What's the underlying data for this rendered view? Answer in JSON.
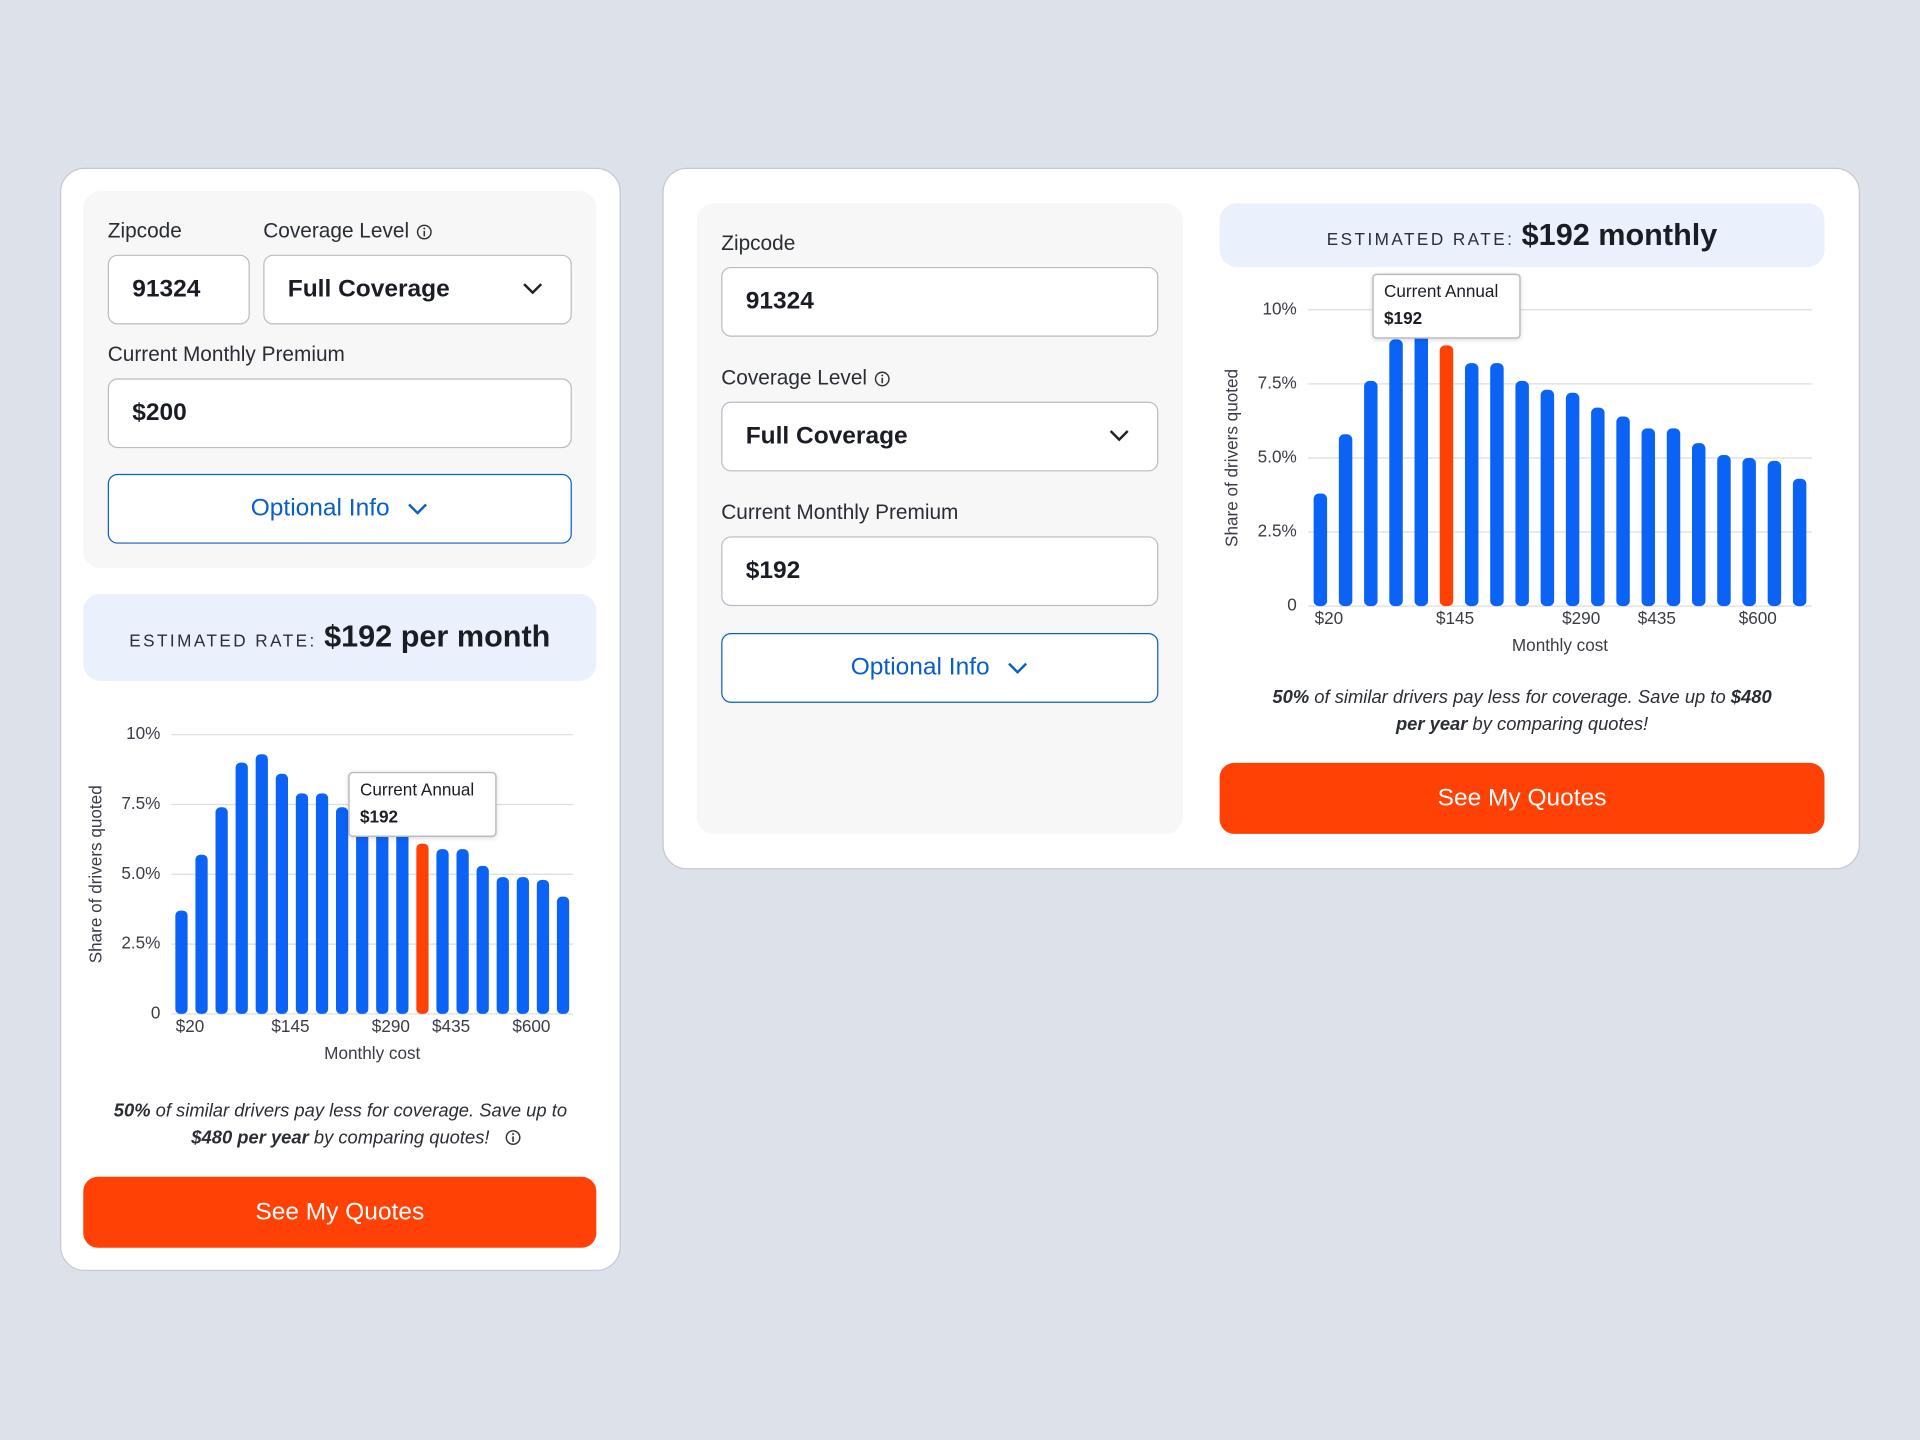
{
  "left_card": {
    "form": {
      "zipcode_label": "Zipcode",
      "zipcode": "91324",
      "coverage_label": "Coverage Level",
      "coverage": "Full Coverage",
      "premium_label": "Current Monthly Premium",
      "premium": "$200",
      "optional_button": "Optional Info"
    },
    "estimate": {
      "label": "ESTIMATED RATE:",
      "value": "$192 per month"
    },
    "note": [
      {
        "text": "50%",
        "bold": true
      },
      {
        "text": " of similar drivers pay less for coverage. Save up to ",
        "bold": false
      },
      {
        "text": "$480 per year",
        "bold": true
      },
      {
        "text": " by comparing quotes!",
        "bold": false
      }
    ],
    "button": "See My Quotes"
  },
  "right_card": {
    "form": {
      "zipcode_label": "Zipcode",
      "zipcode": "91324",
      "coverage_label": "Coverage Level",
      "coverage": "Full Coverage",
      "premium_label": "Current Monthly Premium",
      "premium": "$192",
      "optional_button": "Optional Info"
    },
    "estimate": {
      "label": "ESTIMATED RATE:",
      "value": "$192 monthly"
    },
    "note": [
      {
        "text": "50%",
        "bold": true
      },
      {
        "text": " of similar drivers pay less for coverage. Save up to ",
        "bold": false
      },
      {
        "text": "$480 per year",
        "bold": true
      },
      {
        "text": " by comparing quotes!",
        "bold": false
      }
    ],
    "button": "See My Quotes"
  },
  "chart_data": [
    {
      "type": "bar",
      "ylabel": "Share of drivers quoted",
      "xlabel": "Monthly cost",
      "categories": [
        "$20",
        null,
        null,
        null,
        null,
        "$145",
        null,
        null,
        null,
        null,
        "$290",
        null,
        null,
        "$435",
        null,
        null,
        null,
        "$600",
        null,
        null
      ],
      "values": [
        3.7,
        5.7,
        7.4,
        9.0,
        9.3,
        8.6,
        7.9,
        7.9,
        7.4,
        7.2,
        7.0,
        6.5,
        6.1,
        5.9,
        5.9,
        5.3,
        4.9,
        4.9,
        4.8,
        4.2
      ],
      "color": "#0b63f6",
      "highlight": {
        "index": 12,
        "color": "#ff4105"
      },
      "tooltip": {
        "title": "Current Annual",
        "value": "$192"
      },
      "ylim": [
        0,
        10
      ],
      "yticks": [
        0,
        {
          "value": 2.5,
          "label": "2.5%"
        },
        {
          "value": 5,
          "label": "5.0%"
        },
        {
          "value": 7.5,
          "label": "7.5%"
        },
        {
          "value": 10,
          "label": "10%"
        }
      ],
      "grid": true
    },
    {
      "type": "bar",
      "ylabel": "Share of drivers quoted",
      "xlabel": "Monthly cost",
      "categories": [
        "$20",
        null,
        null,
        null,
        null,
        "$145",
        null,
        null,
        null,
        null,
        "$290",
        null,
        null,
        "$435",
        null,
        null,
        null,
        "$600",
        null,
        null
      ],
      "values": [
        3.8,
        5.8,
        7.6,
        9.0,
        9.3,
        8.8,
        8.2,
        8.2,
        7.6,
        7.3,
        7.2,
        6.7,
        6.4,
        6.0,
        6.0,
        5.5,
        5.1,
        5.0,
        4.9,
        4.3
      ],
      "color": "#0b63f6",
      "highlight": {
        "index": 5,
        "color": "#ff4105"
      },
      "tooltip": {
        "title": "Current Annual",
        "value": "$192"
      },
      "ylim": [
        0,
        10
      ],
      "yticks": [
        0,
        {
          "value": 2.5,
          "label": "2.5%"
        },
        {
          "value": 5,
          "label": "5.0%"
        },
        {
          "value": 7.5,
          "label": "7.5%"
        },
        {
          "value": 10,
          "label": "10%"
        }
      ],
      "grid": true
    }
  ]
}
